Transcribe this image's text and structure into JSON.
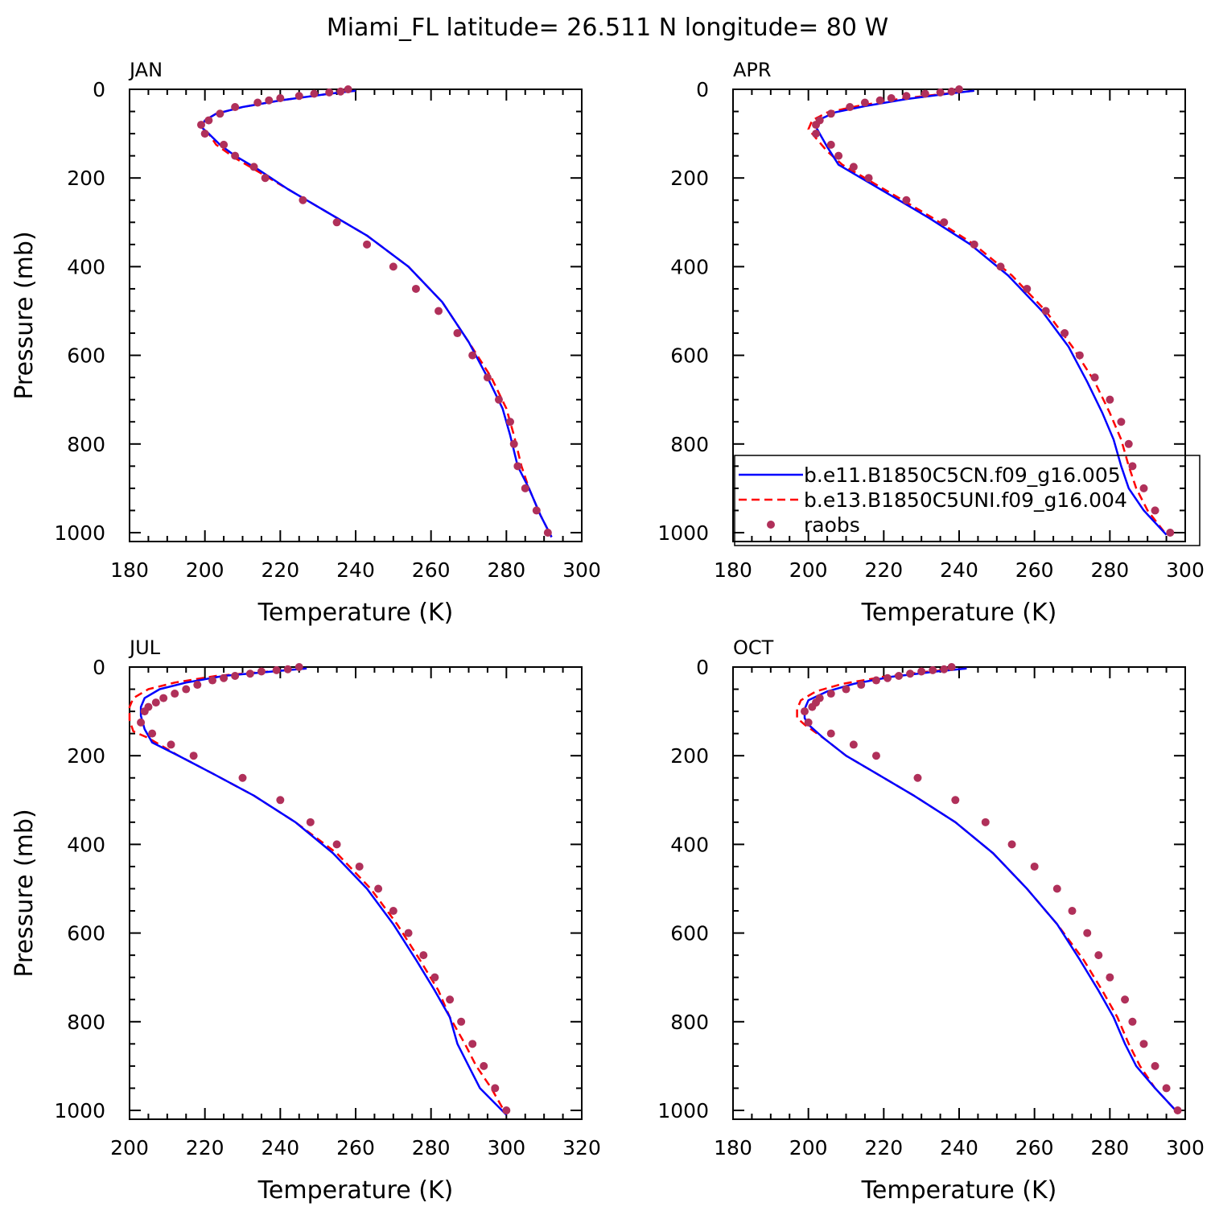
{
  "title": "Miami_FL  latitude= 26.511 N longitude= 80 W",
  "colors": {
    "series_1": "#0000ff",
    "series_2": "#ff0000",
    "observations": "#b0305a",
    "axes": "#000000"
  },
  "legend": {
    "placement": "lower-right of APR panel",
    "entries": [
      "b.e11.B1850C5CN.f09_g16.005",
      "b.e13.B1850C5UNI.f09_g16.004",
      "raobs"
    ]
  },
  "chart_data": [
    {
      "type": "line",
      "title": "JAN",
      "xlabel": "Temperature (K)",
      "ylabel": "Pressure (mb)",
      "xlim": [
        180,
        300
      ],
      "ylim": [
        1020,
        0
      ],
      "xticks": [
        180,
        200,
        220,
        240,
        260,
        280,
        300
      ],
      "yticks": [
        0,
        200,
        400,
        600,
        800,
        1000
      ],
      "series": [
        {
          "name": "b.e11.B1850C5CN.f09_g16.005",
          "style": "solid",
          "x": [
            240,
            233,
            220,
            210,
            203,
            200,
            199,
            201,
            204,
            208,
            214,
            222,
            232,
            243,
            254,
            263,
            270,
            275,
            279,
            281,
            283,
            286,
            289,
            292
          ],
          "y": [
            3,
            10,
            25,
            40,
            55,
            70,
            85,
            100,
            125,
            150,
            180,
            225,
            275,
            330,
            400,
            480,
            570,
            650,
            720,
            780,
            850,
            900,
            960,
            1010
          ]
        },
        {
          "name": "b.e13.B1850C5UNI.f09_g16.004",
          "style": "dashed",
          "x": [
            240,
            233,
            220,
            210,
            203,
            200,
            199,
            201,
            203,
            208,
            214,
            222,
            232,
            243,
            254,
            263,
            270,
            276,
            280,
            282,
            284,
            286,
            289,
            292
          ],
          "y": [
            3,
            10,
            25,
            40,
            55,
            70,
            85,
            100,
            125,
            155,
            185,
            225,
            275,
            330,
            400,
            480,
            570,
            650,
            720,
            780,
            850,
            900,
            960,
            1010
          ]
        }
      ],
      "observations": {
        "name": "raobs",
        "x": [
          238,
          236,
          233,
          229,
          225,
          220,
          217,
          214,
          208,
          204,
          201,
          199,
          200,
          205,
          208,
          213,
          216,
          226,
          235,
          243,
          250,
          256,
          262,
          267,
          271,
          275,
          278,
          281,
          282,
          283,
          285,
          288,
          291
        ],
        "y": [
          0,
          5,
          7,
          10,
          15,
          20,
          25,
          30,
          40,
          55,
          70,
          80,
          100,
          125,
          150,
          175,
          200,
          250,
          300,
          350,
          400,
          450,
          500,
          550,
          600,
          650,
          700,
          750,
          800,
          850,
          900,
          950,
          1000
        ]
      }
    },
    {
      "type": "line",
      "title": "APR",
      "xlabel": "Temperature (K)",
      "ylabel": "",
      "xlim": [
        180,
        300
      ],
      "ylim": [
        1020,
        0
      ],
      "xticks": [
        180,
        200,
        220,
        240,
        260,
        280,
        300
      ],
      "yticks": [
        0,
        200,
        400,
        600,
        800,
        1000
      ],
      "series": [
        {
          "name": "b.e11.B1850C5CN.f09_g16.005",
          "style": "solid",
          "x": [
            244,
            237,
            226,
            215,
            207,
            203,
            202,
            203,
            205,
            208,
            214,
            222,
            232,
            243,
            253,
            262,
            269,
            274,
            278,
            281,
            283,
            285,
            289,
            295
          ],
          "y": [
            3,
            10,
            22,
            38,
            52,
            68,
            85,
            100,
            130,
            170,
            200,
            240,
            290,
            350,
            420,
            500,
            580,
            660,
            730,
            790,
            850,
            900,
            950,
            1005
          ]
        },
        {
          "name": "b.e13.B1850C5UNI.f09_g16.004",
          "style": "dashed",
          "x": [
            244,
            236,
            224,
            213,
            205,
            201,
            200,
            202,
            205,
            209,
            215,
            223,
            233,
            244,
            254,
            263,
            270,
            276,
            280,
            283,
            285,
            287,
            290,
            295
          ],
          "y": [
            3,
            10,
            22,
            38,
            52,
            70,
            90,
            110,
            140,
            170,
            200,
            240,
            290,
            350,
            420,
            500,
            580,
            660,
            730,
            790,
            850,
            900,
            950,
            1005
          ]
        }
      ],
      "observations": {
        "name": "raobs",
        "x": [
          240,
          238,
          235,
          231,
          226,
          222,
          219,
          215,
          211,
          206,
          203,
          202,
          202,
          206,
          208,
          212,
          216,
          226,
          236,
          244,
          251,
          258,
          263,
          268,
          272,
          276,
          280,
          283,
          285,
          286,
          289,
          292,
          296
        ],
        "y": [
          0,
          5,
          7,
          10,
          15,
          20,
          25,
          30,
          40,
          55,
          70,
          80,
          100,
          125,
          150,
          175,
          200,
          250,
          300,
          350,
          400,
          450,
          500,
          550,
          600,
          650,
          700,
          750,
          800,
          850,
          900,
          950,
          1000
        ]
      }
    },
    {
      "type": "line",
      "title": "JUL",
      "xlabel": "Temperature (K)",
      "ylabel": "Pressure (mb)",
      "xlim": [
        200,
        320
      ],
      "ylim": [
        1020,
        0
      ],
      "xticks": [
        200,
        220,
        240,
        260,
        280,
        300,
        320
      ],
      "yticks": [
        0,
        200,
        400,
        600,
        800,
        1000
      ],
      "series": [
        {
          "name": "b.e11.B1850C5CN.f09_g16.005",
          "style": "solid",
          "x": [
            247,
            238,
            225,
            215,
            208,
            204,
            203,
            203,
            204,
            206,
            213,
            222,
            233,
            244,
            254,
            263,
            270,
            276,
            281,
            285,
            287,
            290,
            293,
            300
          ],
          "y": [
            3,
            10,
            20,
            35,
            50,
            70,
            90,
            110,
            140,
            170,
            200,
            240,
            290,
            350,
            420,
            500,
            580,
            660,
            730,
            790,
            850,
            900,
            950,
            1010
          ]
        },
        {
          "name": "b.e13.B1850C5UNI.f09_g16.004",
          "style": "dashed",
          "x": [
            247,
            237,
            223,
            212,
            205,
            201,
            200,
            200,
            201,
            205,
            213,
            222,
            233,
            244,
            255,
            264,
            271,
            277,
            282,
            285,
            289,
            292,
            296,
            300
          ],
          "y": [
            3,
            10,
            20,
            35,
            50,
            70,
            90,
            120,
            145,
            160,
            200,
            240,
            290,
            350,
            420,
            500,
            580,
            660,
            730,
            790,
            850,
            900,
            950,
            1010
          ]
        }
      ],
      "observations": {
        "name": "raobs",
        "x": [
          245,
          242,
          239,
          235,
          232,
          228,
          225,
          222,
          218,
          215,
          212,
          209,
          207,
          205,
          204,
          203,
          206,
          211,
          217,
          230,
          240,
          248,
          255,
          261,
          266,
          270,
          274,
          278,
          281,
          285,
          288,
          291,
          294,
          297,
          300
        ],
        "y": [
          0,
          5,
          7,
          10,
          15,
          20,
          25,
          30,
          40,
          50,
          60,
          70,
          80,
          90,
          100,
          125,
          150,
          175,
          200,
          250,
          300,
          350,
          400,
          450,
          500,
          550,
          600,
          650,
          700,
          750,
          800,
          850,
          900,
          950,
          1000
        ]
      }
    },
    {
      "type": "line",
      "title": "OCT",
      "xlabel": "Temperature (K)",
      "ylabel": "",
      "xlim": [
        180,
        300
      ],
      "ylim": [
        1020,
        0
      ],
      "xticks": [
        180,
        200,
        220,
        240,
        260,
        280,
        300
      ],
      "yticks": [
        0,
        200,
        400,
        600,
        800,
        1000
      ],
      "series": [
        {
          "name": "b.e11.B1850C5CN.f09_g16.005",
          "style": "solid",
          "x": [
            242,
            234,
            222,
            212,
            205,
            200,
            199,
            199,
            200,
            204,
            210,
            218,
            228,
            239,
            249,
            258,
            266,
            272,
            277,
            281,
            284,
            287,
            292,
            298
          ],
          "y": [
            3,
            10,
            22,
            38,
            55,
            75,
            95,
            115,
            130,
            160,
            200,
            240,
            290,
            350,
            420,
            500,
            580,
            660,
            730,
            790,
            850,
            900,
            950,
            1005
          ]
        },
        {
          "name": "b.e13.B1850C5UNI.f09_g16.004",
          "style": "dashed",
          "x": [
            242,
            232,
            220,
            209,
            202,
            198,
            197,
            197,
            199,
            204,
            210,
            218,
            228,
            239,
            249,
            258,
            266,
            273,
            278,
            282,
            285,
            288,
            292,
            298
          ],
          "y": [
            3,
            10,
            22,
            38,
            55,
            75,
            95,
            115,
            130,
            160,
            200,
            240,
            290,
            350,
            420,
            500,
            580,
            660,
            730,
            790,
            850,
            900,
            950,
            1005
          ]
        }
      ],
      "observations": {
        "name": "raobs",
        "x": [
          238,
          236,
          233,
          230,
          227,
          224,
          221,
          218,
          214,
          210,
          206,
          203,
          202,
          201,
          199,
          200,
          206,
          212,
          218,
          229,
          239,
          247,
          254,
          260,
          266,
          270,
          274,
          277,
          280,
          284,
          286,
          289,
          292,
          295,
          298
        ],
        "y": [
          0,
          5,
          7,
          10,
          15,
          20,
          25,
          30,
          40,
          50,
          60,
          70,
          80,
          90,
          100,
          125,
          150,
          175,
          200,
          250,
          300,
          350,
          400,
          450,
          500,
          550,
          600,
          650,
          700,
          750,
          800,
          850,
          900,
          950,
          1000
        ]
      }
    }
  ]
}
